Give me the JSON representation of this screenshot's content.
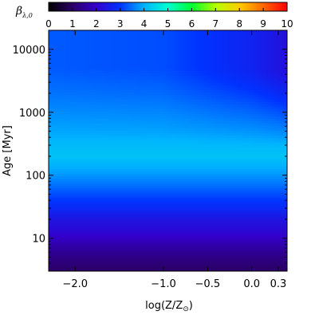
{
  "chart_data": {
    "type": "heatmap",
    "title": "",
    "colorbar": {
      "title": "β",
      "title_subscript": "λ,0",
      "range": [
        0,
        10
      ],
      "ticks": [
        "0",
        "1",
        "2",
        "3",
        "4",
        "5",
        "6",
        "7",
        "8",
        "9",
        "10"
      ],
      "colors": [
        "#000000",
        "#2b0066",
        "#3300cc",
        "#0033ff",
        "#00b3ff",
        "#00ffd0",
        "#00ff33",
        "#b3ff00",
        "#ffcc00",
        "#ff6600",
        "#ff0000"
      ]
    },
    "x_axis": {
      "label_prefix": "log(Z/Z",
      "label_suffix": ")",
      "label_symbol": "⊙",
      "range": [
        -2.3,
        0.4
      ],
      "ticks": [
        {
          "value": -2.0,
          "label": "−2.0"
        },
        {
          "value": -1.0,
          "label": "−1.0"
        },
        {
          "value": -0.5,
          "label": "−0.5"
        },
        {
          "value": 0.0,
          "label": "0.0"
        },
        {
          "value": 0.3,
          "label": "0.3"
        }
      ]
    },
    "y_axis": {
      "label": "Age [Myr]",
      "scale": "log",
      "range": [
        3,
        20000
      ],
      "ticks": [
        {
          "value": 10,
          "label": "10"
        },
        {
          "value": 100,
          "label": "100"
        },
        {
          "value": 1000,
          "label": "1000"
        },
        {
          "value": 10000,
          "label": "10000"
        }
      ]
    },
    "profile": {
      "age": [
        3,
        5,
        8,
        12,
        20,
        30,
        50,
        80,
        120,
        200,
        300,
        500,
        1000,
        2000,
        5000,
        10000,
        20000
      ],
      "beta": [
        1.0,
        1.3,
        1.7,
        2.1,
        2.4,
        2.8,
        3.2,
        3.6,
        3.9,
        4.2,
        4.1,
        3.9,
        3.7,
        3.5,
        3.3,
        3.3,
        3.3
      ]
    },
    "metallicity_effect": [
      {
        "z": -2.3,
        "delta_high_age": 0.0
      },
      {
        "z": -1.0,
        "delta_high_age": -0.1
      },
      {
        "z": 0.0,
        "delta_high_age": -0.6
      },
      {
        "z": 0.4,
        "delta_high_age": -1.0
      }
    ]
  }
}
